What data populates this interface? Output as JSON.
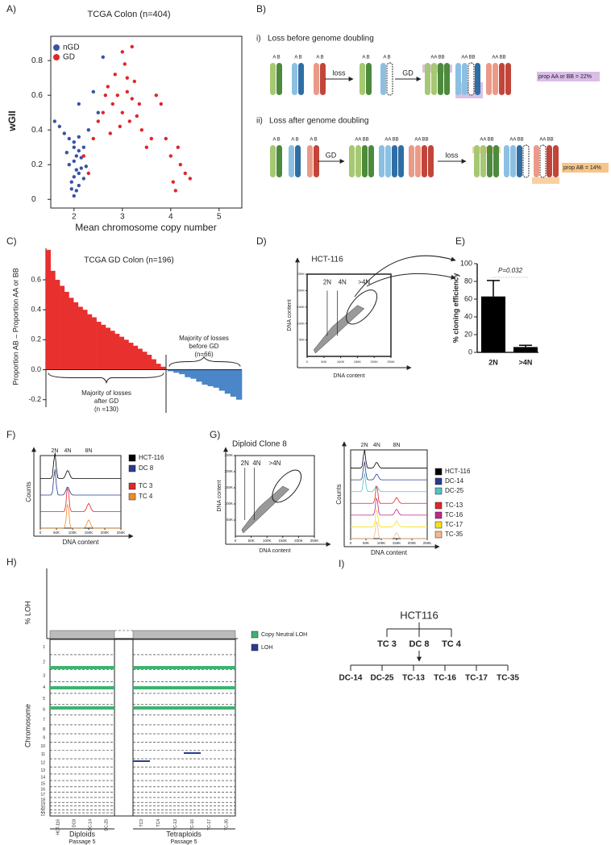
{
  "panels": {
    "a": {
      "label": "A)",
      "chart_data": {
        "type": "scatter",
        "title": "TCGA Colon (n=404)",
        "xlabel": "Mean chromosome copy number",
        "ylabel": "wGII",
        "xlim": [
          1.52,
          5.47
        ],
        "ylim": [
          -0.05,
          0.94
        ],
        "xticks": [
          2,
          3,
          4,
          5
        ],
        "yticks": [
          0,
          0.2,
          0.4,
          0.6,
          0.8
        ],
        "legend": "upper left",
        "series": [
          {
            "name": "nGD",
            "color": "#3953a4",
            "x": [
              2.0,
              2.05,
              2.1,
              1.95,
              2.0,
              2.1,
              2.15,
              1.9,
              2.0,
              2.05,
              2.1,
              2.2,
              1.85,
              2.0,
              2.1,
              2.15,
              2.25,
              1.8,
              1.7,
              1.6,
              2.3,
              2.5,
              2.1,
              1.9,
              2.0,
              2.2,
              2.4,
              2.6,
              1.95,
              2.05
            ],
            "y": [
              0.02,
              0.05,
              0.08,
              0.1,
              0.13,
              0.15,
              0.18,
              0.2,
              0.22,
              0.25,
              0.28,
              0.3,
              0.27,
              0.33,
              0.36,
              0.24,
              0.19,
              0.38,
              0.42,
              0.45,
              0.4,
              0.5,
              0.55,
              0.35,
              0.3,
              0.12,
              0.62,
              0.82,
              0.06,
              0.17
            ]
          },
          {
            "name": "GD",
            "color": "#e0262a",
            "x": [
              2.8,
              2.9,
              3.0,
              3.1,
              3.2,
              3.3,
              2.7,
              2.85,
              3.05,
              3.15,
              3.4,
              3.6,
              2.6,
              2.95,
              3.25,
              3.5,
              3.8,
              4.0,
              4.2,
              4.3,
              4.1,
              3.9,
              4.4,
              2.5,
              2.4,
              3.0,
              3.2,
              3.7,
              2.2,
              2.3,
              3.35,
              2.75,
              4.05,
              4.15,
              3.1,
              2.65
            ],
            "y": [
              0.55,
              0.6,
              0.5,
              0.62,
              0.58,
              0.48,
              0.65,
              0.72,
              0.78,
              0.45,
              0.4,
              0.35,
              0.5,
              0.42,
              0.68,
              0.3,
              0.55,
              0.25,
              0.2,
              0.15,
              0.05,
              0.35,
              0.12,
              0.45,
              0.35,
              0.85,
              0.88,
              0.6,
              0.25,
              0.15,
              0.55,
              0.38,
              0.1,
              0.3,
              0.7,
              0.6
            ]
          }
        ]
      }
    },
    "b": {
      "label": "B)",
      "allele_pair": "A B",
      "allele_quad": "AA BB",
      "i": {
        "label": "i)",
        "title": "Loss before genome doubling",
        "step1": "loss",
        "step2": "GD",
        "result": "prop AA or BB = 22%"
      },
      "ii": {
        "label": "ii)",
        "title": "Loss after genome doubling",
        "step1": "GD",
        "step2": "loss",
        "result": "prop AB = 14%"
      }
    },
    "c": {
      "label": "C)",
      "chart_data": {
        "type": "bar",
        "title": "TCGA GD Colon (n=196)",
        "ylabel": "Proportion AB – Proportion AA or BB",
        "ylim": [
          -0.25,
          0.81
        ],
        "yticks": [
          -0.2,
          {
            "value": 0,
            "label": "0.0"
          },
          0.2,
          0.4,
          0.6
        ],
        "series": [
          {
            "color": "#e8302f",
            "values": [
              0.8,
              0.66,
              0.6,
              0.56,
              0.52,
              0.48,
              0.45,
              0.42,
              0.4,
              0.37,
              0.35,
              0.32,
              0.3,
              0.28,
              0.26,
              0.24,
              0.22,
              0.2,
              0.18,
              0.16,
              0.14,
              0.12,
              0.1,
              0.07,
              0.04,
              0.02
            ]
          },
          {
            "color": "#4a86c8",
            "values": [
              -0.01,
              -0.02,
              -0.03,
              -0.05,
              -0.06,
              -0.08,
              -0.1,
              -0.11,
              -0.12,
              -0.14,
              -0.16,
              -0.18,
              -0.2
            ]
          }
        ],
        "annotations": [
          [
            "Majority of  losses",
            "after GD",
            "(n =130)"
          ],
          [
            "Majority of losses",
            "before GD",
            "(n=66)"
          ]
        ]
      }
    },
    "d": {
      "label": "D)",
      "title": "HCT-116",
      "gates": [
        "2N",
        "4N",
        ">4N"
      ],
      "xlabel": "DNA content",
      "ylabel": "DNA content",
      "xticks": [
        0,
        {
          "value": 50000,
          "label": "50K"
        },
        {
          "value": 100000,
          "label": "100K"
        },
        {
          "value": 150000,
          "label": "150K"
        },
        {
          "value": 200000,
          "label": "200K"
        },
        {
          "value": 250000,
          "label": "250K"
        }
      ],
      "yticks": [
        {
          "value": 50000,
          "label": "50K"
        },
        {
          "value": 100000,
          "label": "100K"
        },
        {
          "value": 150000,
          "label": "150K"
        },
        {
          "value": 200000,
          "label": "200K"
        },
        {
          "value": 250000,
          "label": "250K"
        }
      ]
    },
    "e": {
      "label": "E)",
      "chart_data": {
        "type": "bar",
        "ylabel": "% cloning efficiency",
        "annotation": "P=0.032",
        "color": "#000000",
        "categories": [
          "2N",
          ">4N"
        ],
        "values": [
          63,
          6
        ],
        "errors": [
          18,
          2
        ],
        "ylim": [
          0,
          100
        ],
        "yticks": [
          0,
          20,
          40,
          60,
          80,
          100
        ]
      }
    },
    "f": {
      "label": "F)",
      "peaks": [
        "2N",
        "4N",
        "8N"
      ],
      "ylabel": "Counts",
      "xlabel": "DNA content",
      "legend": [
        {
          "name": "HCT-116",
          "color": "#000000"
        },
        {
          "name": "DC 8",
          "color": "#2a3b8f"
        },
        {
          "name": "TC 3",
          "color": "#e0262a"
        },
        {
          "name": "TC 4",
          "color": "#f08a2a"
        }
      ]
    },
    "g": {
      "label": "G)",
      "title": "Diploid Clone 8",
      "gates": [
        "2N",
        "4N",
        ">4N"
      ],
      "xlabel": "DNA content",
      "ylabel": "DNA content",
      "hist": {
        "peaks": [
          "2N",
          "4N",
          "8N"
        ],
        "ylabel": "Counts",
        "xlabel": "DNA content",
        "legend": [
          {
            "name": "HCT-116",
            "color": "#000000"
          },
          {
            "name": "DC-14",
            "color": "#2a3b8f"
          },
          {
            "name": "DC-25",
            "color": "#4fc3c8"
          },
          {
            "name": "TC-13",
            "color": "#e0262a"
          },
          {
            "name": "TC-16",
            "color": "#c0288a"
          },
          {
            "name": "TC-17",
            "color": "#f3e21b"
          },
          {
            "name": "TC-35",
            "color": "#f5b98c"
          }
        ]
      }
    },
    "h": {
      "label": "H)",
      "ylabel_top": "% LOH",
      "ylabel": "Chromosome",
      "chromosomes": [
        1,
        2,
        3,
        4,
        5,
        6,
        7,
        8,
        9,
        10,
        11,
        12,
        13,
        14,
        15,
        16,
        17,
        18,
        19,
        20,
        21,
        22
      ],
      "samples": [
        "HCT-116",
        "DC8",
        "DC-14",
        "DC-25",
        "TC3",
        "TC4",
        "TC-13",
        "TC-16",
        "TC-17",
        "TC-35"
      ],
      "legend": [
        {
          "name": "Copy Neutral LOH",
          "color": "#3cb371"
        },
        {
          "name": "LOH",
          "color": "#2a3b8f"
        }
      ],
      "groups": [
        {
          "name": "Diploids",
          "sub": "Passage 5"
        },
        {
          "name": "Tetraploids",
          "sub": "Passage 5"
        }
      ]
    },
    "i": {
      "label": "I)",
      "root": "HCT116",
      "level1": [
        {
          "name": "TC 3",
          "color": "#d7262b"
        },
        {
          "name": "DC 8",
          "color": "#4a86c8"
        },
        {
          "name": "TC 4",
          "color": "#d7262b"
        }
      ],
      "level2": [
        {
          "name": "DC-14",
          "color": "#4a86c8"
        },
        {
          "name": "DC-25",
          "color": "#4a86c8"
        },
        {
          "name": "TC-13",
          "color": "#d7262b"
        },
        {
          "name": "TC-16",
          "color": "#d7262b"
        },
        {
          "name": "TC-17",
          "color": "#d7262b"
        },
        {
          "name": "TC-35",
          "color": "#d7262b"
        }
      ]
    }
  }
}
